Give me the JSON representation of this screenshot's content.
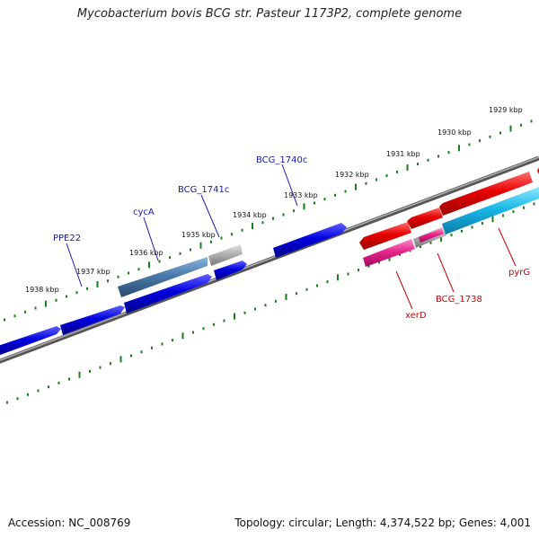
{
  "title": "Mycobacterium bovis BCG str. Pasteur 1173P2, complete genome",
  "accession": "Accession: NC_008769",
  "summary": "Topology: circular; Length: 4,374,522 bp; Genes: 4,001",
  "colors": {
    "backbone": "#808080",
    "tick": "#1a7f1a",
    "forward_gene": "#0000dd",
    "forward_label": "#1a1aaa",
    "reverse_gene": "#e60000",
    "reverse_label": "#cc0000",
    "cyan_gene": "#1ab8e8",
    "pink_gene": "#e8248c",
    "steel_gene": "#4a7aab",
    "gray_gene": "#a0a0a0"
  },
  "ticks": [
    {
      "label": "1929 kbp"
    },
    {
      "label": "1930 kbp"
    },
    {
      "label": "1931 kbp"
    },
    {
      "label": "1932 kbp"
    },
    {
      "label": "1933 kbp"
    },
    {
      "label": "1934 kbp"
    },
    {
      "label": "1935 kbp"
    },
    {
      "label": "1936 kbp"
    },
    {
      "label": "1937 kbp"
    },
    {
      "label": "1938 kbp"
    }
  ],
  "gene_labels": [
    {
      "label": "BCG_1740c",
      "strand": "forward"
    },
    {
      "label": "BCG_1741c",
      "strand": "forward"
    },
    {
      "label": "cycA",
      "strand": "forward"
    },
    {
      "label": "PPE22",
      "strand": "forward"
    },
    {
      "label": "pyrG",
      "strand": "reverse"
    },
    {
      "label": "BCG_1738",
      "strand": "reverse"
    },
    {
      "label": "xerD",
      "strand": "reverse"
    }
  ]
}
